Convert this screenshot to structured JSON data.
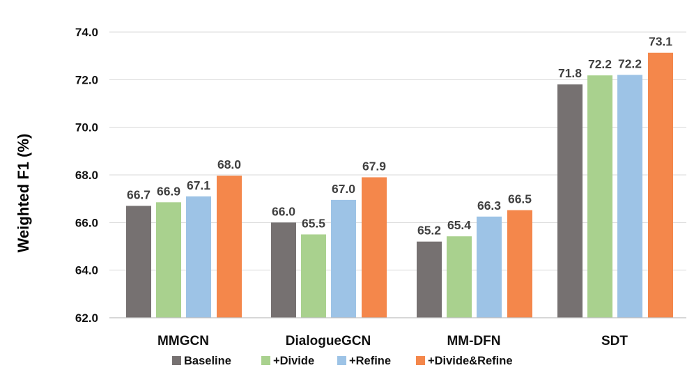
{
  "chart_data": {
    "type": "bar",
    "title": "",
    "xlabel": "",
    "ylabel": "Weighted F1 (%)",
    "ylim": [
      62.0,
      74.0
    ],
    "yticks": [
      62.0,
      64.0,
      66.0,
      68.0,
      70.0,
      72.0,
      74.0
    ],
    "ytick_labels": [
      "62.0",
      "64.0",
      "66.0",
      "68.0",
      "70.0",
      "72.0",
      "74.0"
    ],
    "grid": true,
    "legend_position": "bottom",
    "categories": [
      "MMGCN",
      "DialogueGCN",
      "MM-DFN",
      "SDT"
    ],
    "series": [
      {
        "name": "Baseline",
        "color": "#767171",
        "values": [
          66.7,
          66.0,
          65.2,
          71.8
        ],
        "labels": [
          "66.7",
          "66.0",
          "65.2",
          "71.8"
        ]
      },
      {
        "name": "+Divide",
        "color": "#A9D18E",
        "values": [
          66.85,
          65.5,
          65.42,
          72.18
        ],
        "labels": [
          "66.9",
          "65.5",
          "65.4",
          "72.2"
        ]
      },
      {
        "name": "+Refine",
        "color": "#9DC3E6",
        "values": [
          67.1,
          66.95,
          66.25,
          72.2
        ],
        "labels": [
          "67.1",
          "67.0",
          "66.3",
          "72.2"
        ]
      },
      {
        "name": "+Divide&Refine",
        "color": "#F4874B",
        "values": [
          67.97,
          67.9,
          66.52,
          73.13
        ],
        "labels": [
          "68.0",
          "67.9",
          "66.5",
          "73.1"
        ]
      }
    ]
  }
}
